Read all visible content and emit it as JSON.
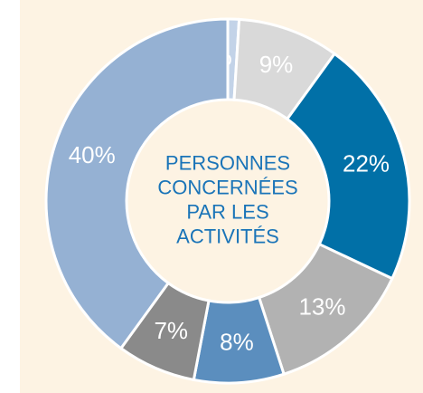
{
  "chart_data": {
    "type": "donut",
    "title": [
      "PERSONNES",
      "CONCERNÉES",
      "PAR LES",
      "ACTIVITÉS"
    ],
    "values": [
      1,
      9,
      22,
      13,
      8,
      7,
      40
    ],
    "value_labels": [
      "1%",
      "9%",
      "22%",
      "13%",
      "8%",
      "7%",
      "40%"
    ],
    "colors": [
      "#c3d3e8",
      "#d9d9d9",
      "#0170a7",
      "#b2b2b2",
      "#5b8ebe",
      "#8a8a8a",
      "#95b1d3"
    ]
  }
}
